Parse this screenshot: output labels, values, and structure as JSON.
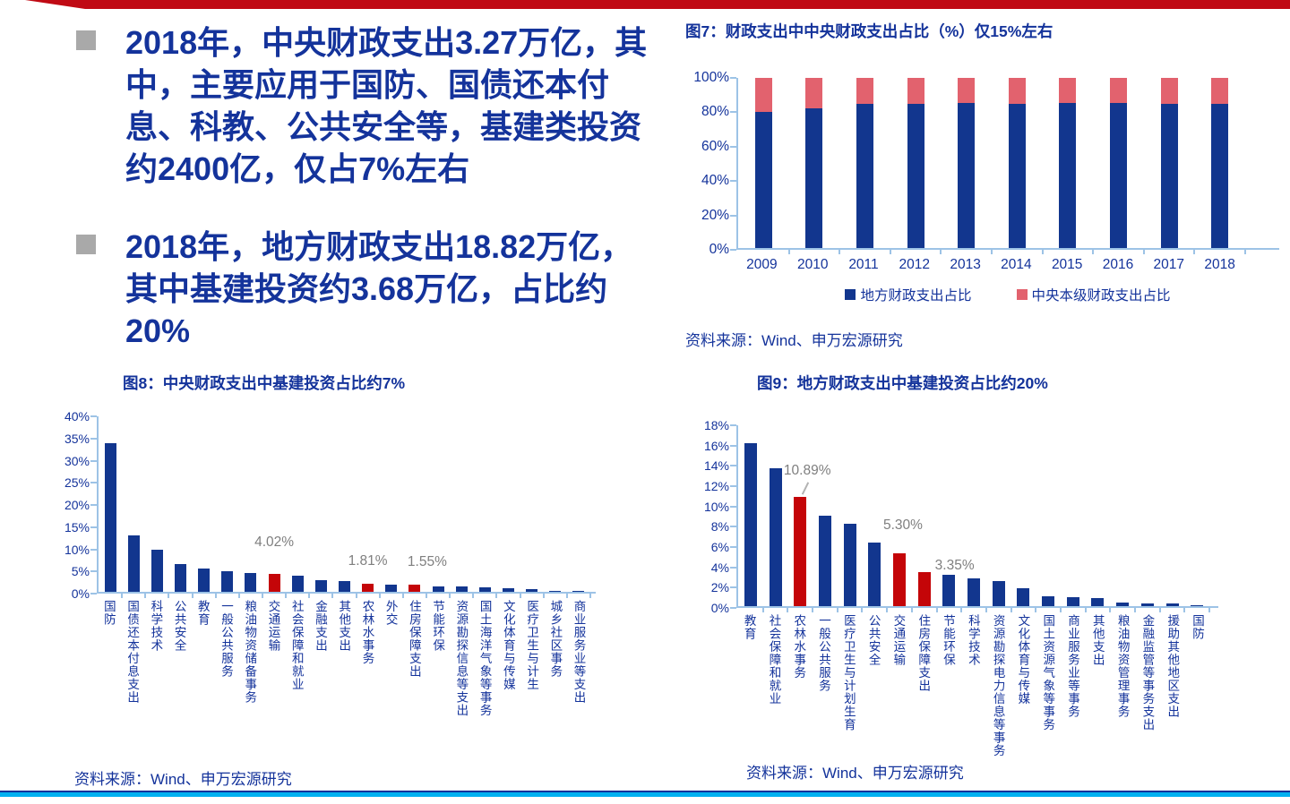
{
  "colors": {
    "banner_red": "#C00A14",
    "text_blue": "#14339B",
    "bar_navy": "#12368E",
    "bar_crimson": "#C40508",
    "bar_salmon": "#E2626E",
    "axis_blue": "#9DC3E6",
    "annotation_gray": "#7F7F7F",
    "bullet_gray": "#A9A9A9",
    "divider_cyan": "#00B0F0"
  },
  "bullets": [
    {
      "text": "2018年，中央财政支出3.27万亿，其中，主要应用于国防、国债还本付息、科教、公共安全等，基建类投资约2400亿，仅占7%左右"
    },
    {
      "text": "2018年，地方财政支出18.82万亿，其中基建投资约3.68万亿，占比约20%"
    }
  ],
  "chart_data": [
    {
      "id": "fig7",
      "type": "bar",
      "stacked": true,
      "title": "图7：财政支出中中央财政支出占比（%）仅15%左右",
      "categories": [
        "2009",
        "2010",
        "2011",
        "2012",
        "2013",
        "2014",
        "2015",
        "2016",
        "2017",
        "2018"
      ],
      "series": [
        {
          "name": "地方财政支出占比",
          "color_key": "bar_navy",
          "values": [
            80,
            82,
            85,
            85,
            85.5,
            85,
            85.5,
            85.5,
            85,
            85
          ]
        },
        {
          "name": "中央本级财政支出占比",
          "color_key": "bar_salmon",
          "values": [
            20,
            18,
            15,
            15,
            14.5,
            15,
            14.5,
            14.5,
            15,
            15
          ]
        }
      ],
      "ylim": [
        0,
        100
      ],
      "yticks": [
        "100%",
        "80%",
        "60%",
        "40%",
        "20%",
        "0%"
      ],
      "grid": false,
      "legend_position": "bottom",
      "source": "资料来源：Wind、申万宏源研究"
    },
    {
      "id": "fig8",
      "type": "bar",
      "stacked": false,
      "title": "图8：中央财政支出中基建投资占比约7%",
      "categories": [
        "国防",
        "国债还本付息支出",
        "科学技术",
        "公共安全",
        "教育",
        "一般公共服务",
        "粮油物资储备事务",
        "交通运输",
        "社会保障和就业",
        "金融支出",
        "其他支出",
        "农林水事务",
        "外交",
        "住房保障支出",
        "节能环保",
        "资源勘探信息等支出",
        "国土海洋气象等事务",
        "文化体育与传媒",
        "医疗卫生与计生",
        "城乡社区事务",
        "商业服务业等支出"
      ],
      "values": [
        33.8,
        12.8,
        9.6,
        6.3,
        5.3,
        4.6,
        4.2,
        4.02,
        3.6,
        2.6,
        2.5,
        1.81,
        1.72,
        1.55,
        1.3,
        1.15,
        1.05,
        0.8,
        0.55,
        0.15,
        0.12
      ],
      "highlight_indices": [
        7,
        11,
        13
      ],
      "annotations": [
        {
          "index": 7,
          "text": "4.02%"
        },
        {
          "index": 11,
          "text": "1.81%"
        },
        {
          "index": 13,
          "text": "1.55%"
        }
      ],
      "ylim": [
        0,
        40
      ],
      "yticks": [
        "40%",
        "35%",
        "30%",
        "25%",
        "20%",
        "15%",
        "10%",
        "5%",
        "0%"
      ],
      "grid": false,
      "source": "资料来源：Wind、申万宏源研究"
    },
    {
      "id": "fig9",
      "type": "bar",
      "stacked": false,
      "title": "图9：地方财政支出中基建投资占比约20%",
      "categories": [
        "教育",
        "社会保障和就业",
        "农林水事务",
        "一般公共服务",
        "医疗卫生与计划生育",
        "公共安全",
        "交通运输",
        "住房保障支出",
        "节能环保",
        "科学技术",
        "资源勘探电力信息等事务",
        "文化体育与传媒",
        "国土资源气象等事务",
        "商业服务业等事务",
        "其他支出",
        "粮油物资管理事务",
        "金融监管等事务支出",
        "援助其他地区支出",
        "国防"
      ],
      "values": [
        16.2,
        13.7,
        10.89,
        9.0,
        8.2,
        6.3,
        5.3,
        3.35,
        3.1,
        2.75,
        2.5,
        1.75,
        1.0,
        0.85,
        0.8,
        0.35,
        0.3,
        0.25,
        0.1
      ],
      "highlight_indices": [
        2,
        6,
        7
      ],
      "annotations": [
        {
          "index": 2,
          "text": "10.89%",
          "callout_line": true
        },
        {
          "index": 6,
          "text": "5.30%"
        },
        {
          "index": 7,
          "text": "3.35%"
        }
      ],
      "ylim": [
        0,
        18
      ],
      "yticks": [
        "18%",
        "16%",
        "14%",
        "12%",
        "10%",
        "8%",
        "6%",
        "4%",
        "2%",
        "0%"
      ],
      "grid": false,
      "source": "资料来源：Wind、申万宏源研究"
    }
  ]
}
